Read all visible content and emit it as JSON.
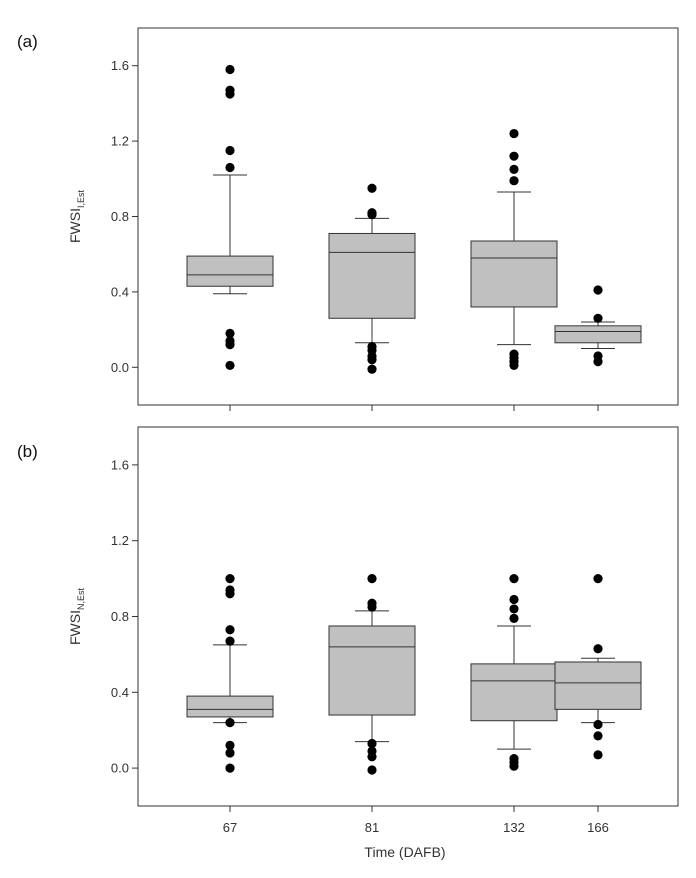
{
  "figure": {
    "xlabel": "Time (DAFB)"
  },
  "chart_data": [
    {
      "type": "box",
      "panel_label": "(a)",
      "ylabel_main": "FWSI",
      "ylabel_sub": "I,Est",
      "ylim": [
        -0.2,
        1.8
      ],
      "yticks": [
        0.0,
        0.4,
        0.8,
        1.2,
        1.6
      ],
      "categories": [
        "67",
        "81",
        "132",
        "166"
      ],
      "boxes": [
        {
          "q1": 0.43,
          "median": 0.49,
          "q3": 0.59,
          "whisker_low": 0.39,
          "whisker_high": 1.02,
          "outliers": [
            0.01,
            0.12,
            0.14,
            0.18,
            1.06,
            1.15,
            1.45,
            1.47,
            1.58
          ]
        },
        {
          "q1": 0.26,
          "median": 0.61,
          "q3": 0.71,
          "whisker_low": 0.13,
          "whisker_high": 0.79,
          "outliers": [
            -0.01,
            0.04,
            0.06,
            0.09,
            0.11,
            0.81,
            0.82,
            0.95
          ]
        },
        {
          "q1": 0.32,
          "median": 0.58,
          "q3": 0.67,
          "whisker_low": 0.12,
          "whisker_high": 0.93,
          "outliers": [
            0.01,
            0.03,
            0.05,
            0.07,
            0.99,
            1.05,
            1.12,
            1.24
          ]
        },
        {
          "q1": 0.13,
          "median": 0.19,
          "q3": 0.22,
          "whisker_low": 0.1,
          "whisker_high": 0.24,
          "outliers": [
            0.03,
            0.06,
            0.26,
            0.41
          ]
        }
      ],
      "grid": false
    },
    {
      "type": "box",
      "panel_label": "(b)",
      "ylabel_main": "FWSI",
      "ylabel_sub": "N,Est",
      "ylim": [
        -0.2,
        1.8
      ],
      "yticks": [
        0.0,
        0.4,
        0.8,
        1.2,
        1.6
      ],
      "categories": [
        "67",
        "81",
        "132",
        "166"
      ],
      "boxes": [
        {
          "q1": 0.27,
          "median": 0.31,
          "q3": 0.38,
          "whisker_low": 0.24,
          "whisker_high": 0.65,
          "outliers": [
            0.0,
            0.08,
            0.12,
            0.24,
            0.67,
            0.73,
            0.92,
            0.94,
            1.0
          ]
        },
        {
          "q1": 0.28,
          "median": 0.64,
          "q3": 0.75,
          "whisker_low": 0.14,
          "whisker_high": 0.83,
          "outliers": [
            -0.01,
            0.06,
            0.09,
            0.13,
            0.85,
            0.87,
            1.0
          ]
        },
        {
          "q1": 0.25,
          "median": 0.46,
          "q3": 0.55,
          "whisker_low": 0.1,
          "whisker_high": 0.75,
          "outliers": [
            0.01,
            0.03,
            0.05,
            0.79,
            0.84,
            0.89,
            1.0
          ]
        },
        {
          "q1": 0.31,
          "median": 0.45,
          "q3": 0.56,
          "whisker_low": 0.24,
          "whisker_high": 0.58,
          "outliers": [
            0.07,
            0.17,
            0.23,
            0.63,
            1.0
          ]
        }
      ],
      "grid": false
    }
  ],
  "colors": {
    "box_fill": "#c0c0c0",
    "stroke": "#333333",
    "outlier": "#000000"
  }
}
